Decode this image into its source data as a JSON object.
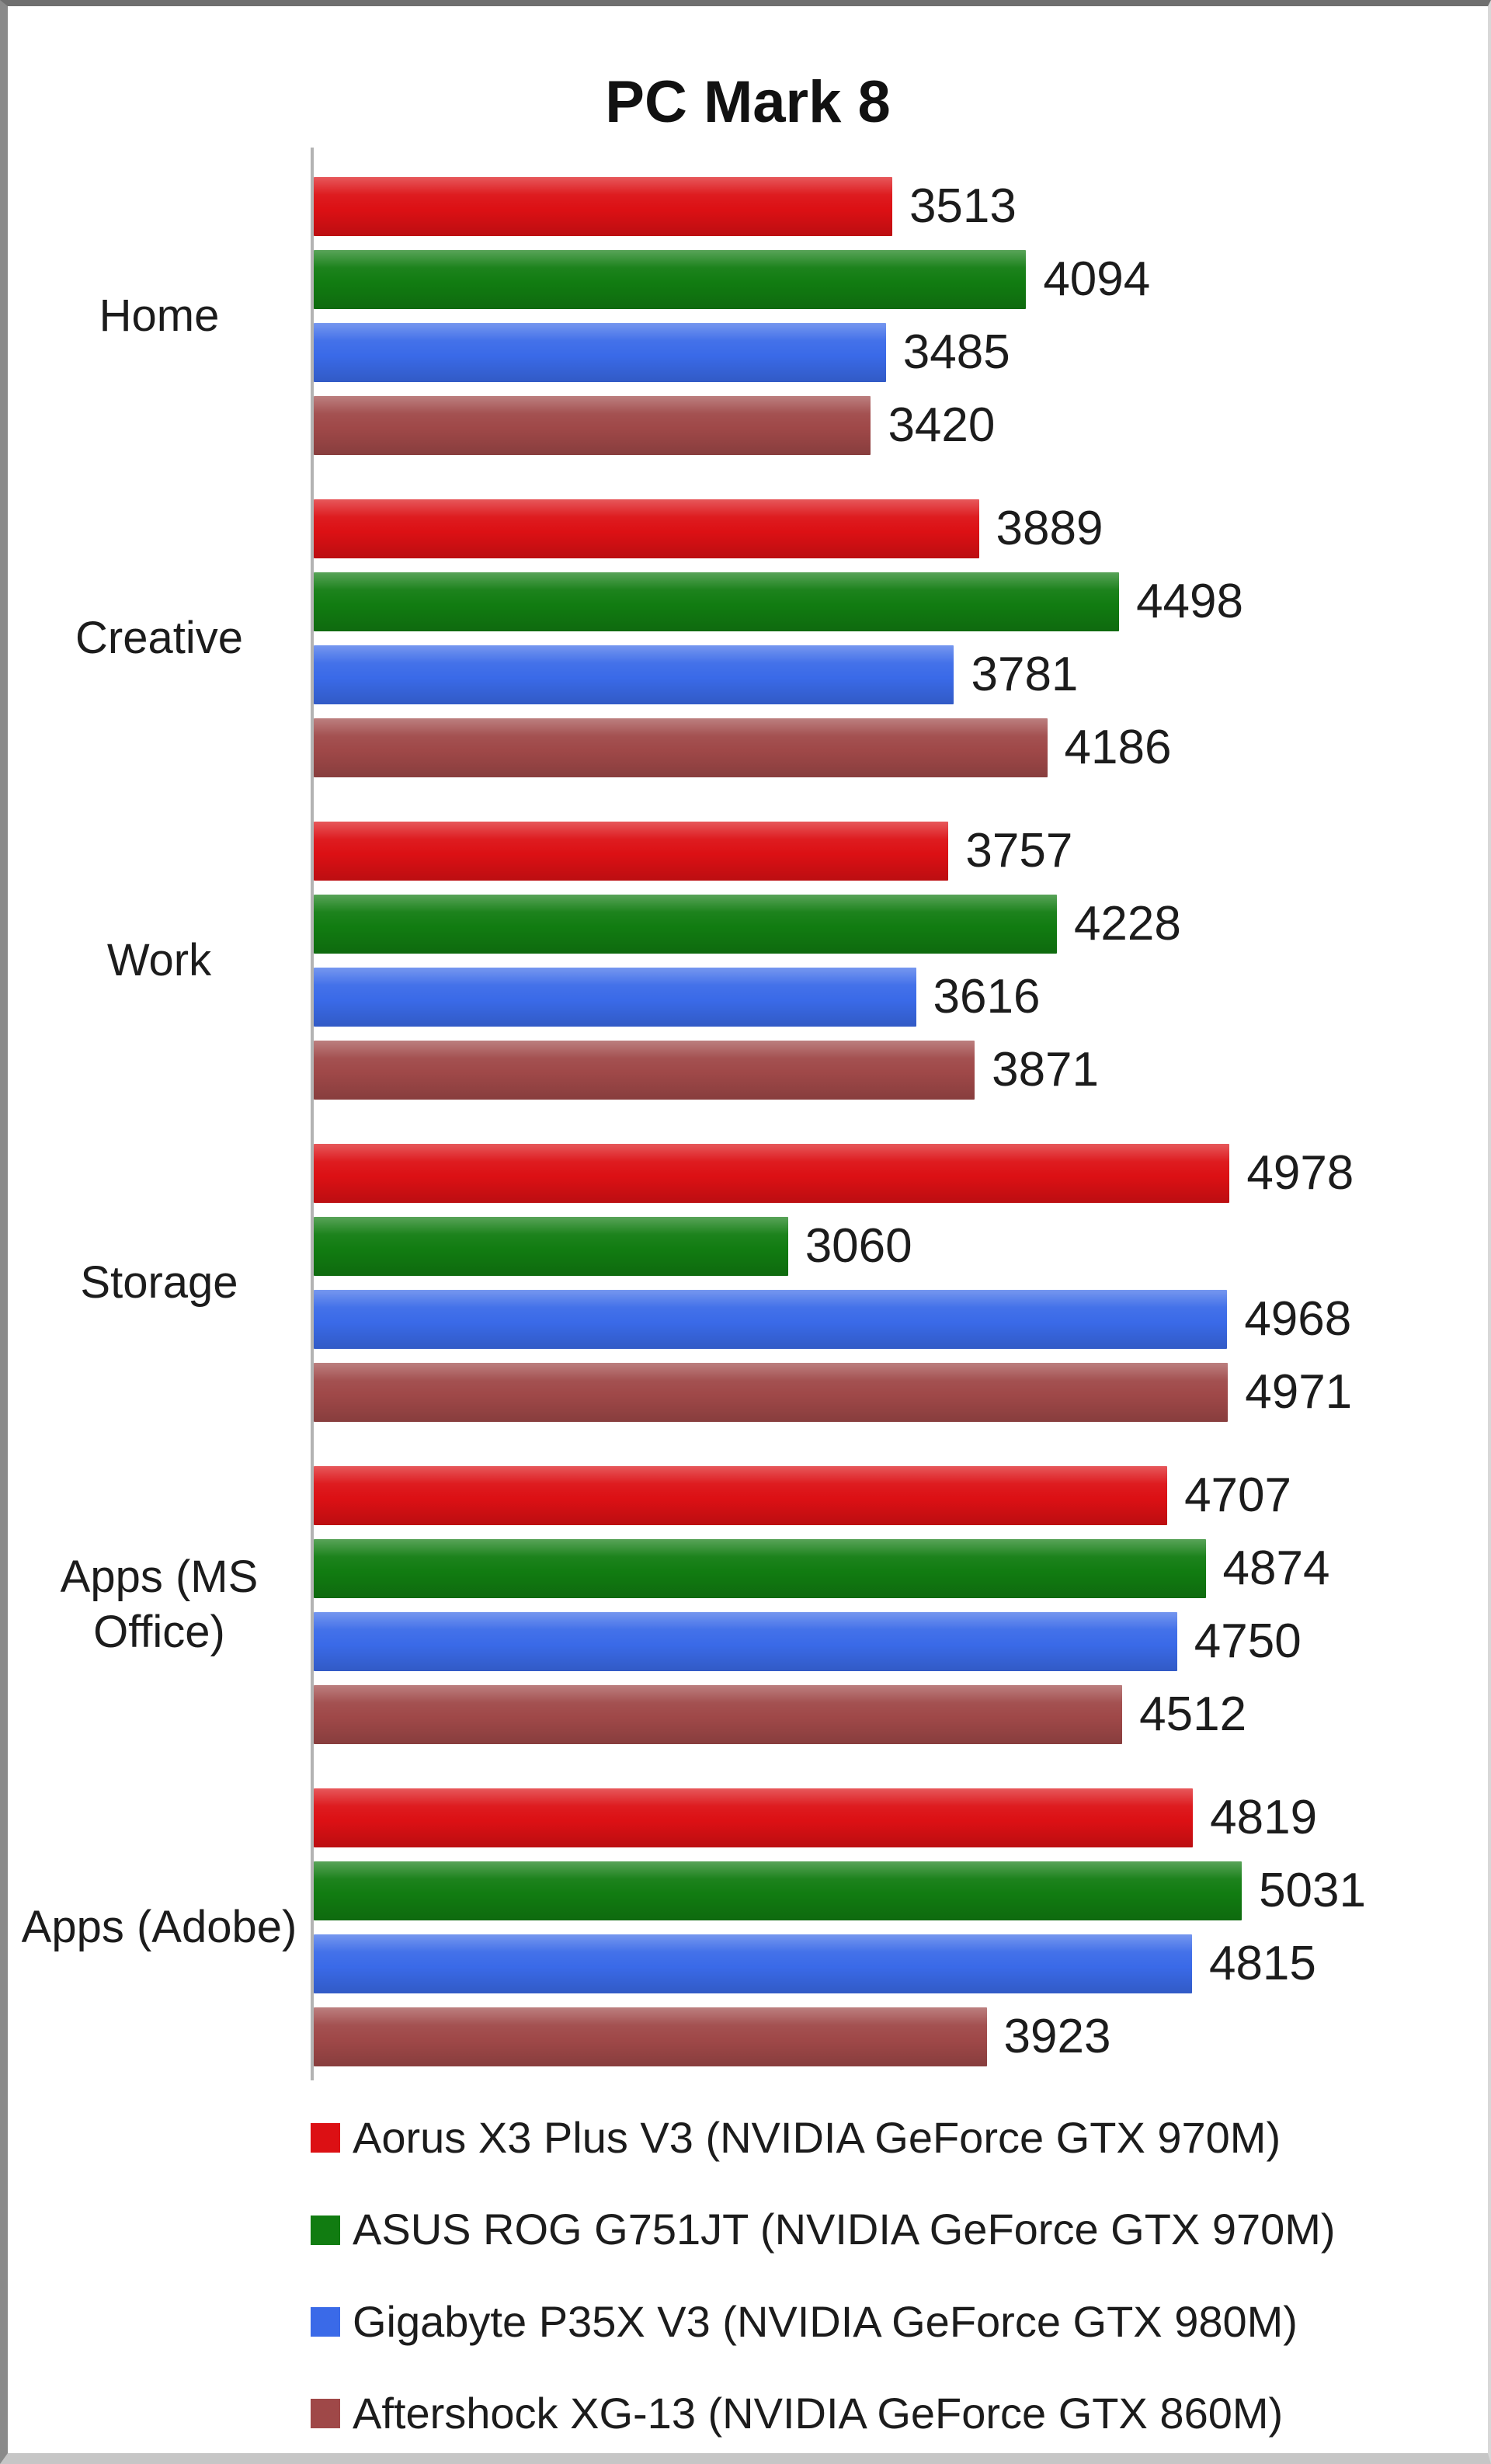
{
  "chart_data": {
    "type": "bar",
    "orientation": "horizontal",
    "title": "PC Mark 8",
    "categories": [
      "Home",
      "Creative",
      "Work",
      "Storage",
      "Apps (MS Office)",
      "Apps (Adobe)"
    ],
    "series": [
      {
        "name": "Aorus X3 Plus V3 (NVIDIA GeForce GTX 970M)",
        "color": "#dc1014",
        "values": [
          3513,
          3889,
          3757,
          4978,
          4707,
          4819
        ]
      },
      {
        "name": "ASUS ROG G751JT (NVIDIA GeForce GTX 970M)",
        "color": "#117c11",
        "values": [
          4094,
          4498,
          4228,
          3060,
          4874,
          5031
        ]
      },
      {
        "name": "Gigabyte P35X V3 (NVIDIA GeForce GTX 980M)",
        "color": "#3a6ae8",
        "values": [
          3485,
          3781,
          3616,
          4968,
          4750,
          4815
        ]
      },
      {
        "name": "Aftershock XG-13 (NVIDIA GeForce GTX 860M)",
        "color": "#9f4848",
        "values": [
          3420,
          4186,
          3871,
          4971,
          4512,
          3923
        ]
      }
    ],
    "value_labels": true,
    "xlim": [
      1000,
      6100
    ],
    "grid": false,
    "legend_position": "bottom",
    "axis_color": "#b3b3b3"
  }
}
